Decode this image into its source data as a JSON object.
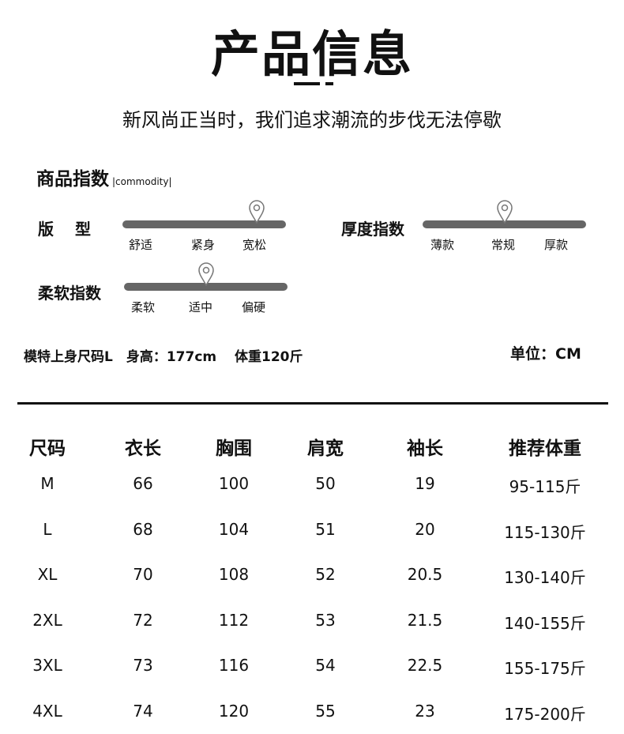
{
  "title": "产品信息",
  "subtitle": "新风尚正当时，我们追求潮流的步伐无法停歇",
  "section": {
    "title": "商品指数",
    "tag": "|commodity|"
  },
  "indices": [
    {
      "label": "版　 型",
      "ticks": [
        "舒适",
        "紧身",
        "宽松"
      ],
      "value_percent": 82
    },
    {
      "label": "厚度指数",
      "ticks": [
        "薄款",
        "常规",
        "厚款"
      ],
      "value_percent": 50
    },
    {
      "label": "柔软指数",
      "ticks": [
        "柔软",
        "适中",
        "偏硬"
      ],
      "value_percent": 50
    }
  ],
  "model_info": "模特上身尺码L　身高：177cm　 体重120斤",
  "unit": "单位：CM",
  "table": {
    "headers": [
      "尺码",
      "衣长",
      "胸围",
      "肩宽",
      "袖长",
      "推荐体重"
    ],
    "rows": [
      [
        "M",
        "66",
        "100",
        "50",
        "19",
        "95-115斤"
      ],
      [
        "L",
        "68",
        "104",
        "51",
        "20",
        "115-130斤"
      ],
      [
        "XL",
        "70",
        "108",
        "52",
        "20.5",
        "130-140斤"
      ],
      [
        "2XL",
        "72",
        "112",
        "53",
        "21.5",
        "140-155斤"
      ],
      [
        "3XL",
        "73",
        "116",
        "54",
        "22.5",
        "155-175斤"
      ],
      [
        "4XL",
        "74",
        "120",
        "55",
        "23",
        "175-200斤"
      ]
    ]
  }
}
